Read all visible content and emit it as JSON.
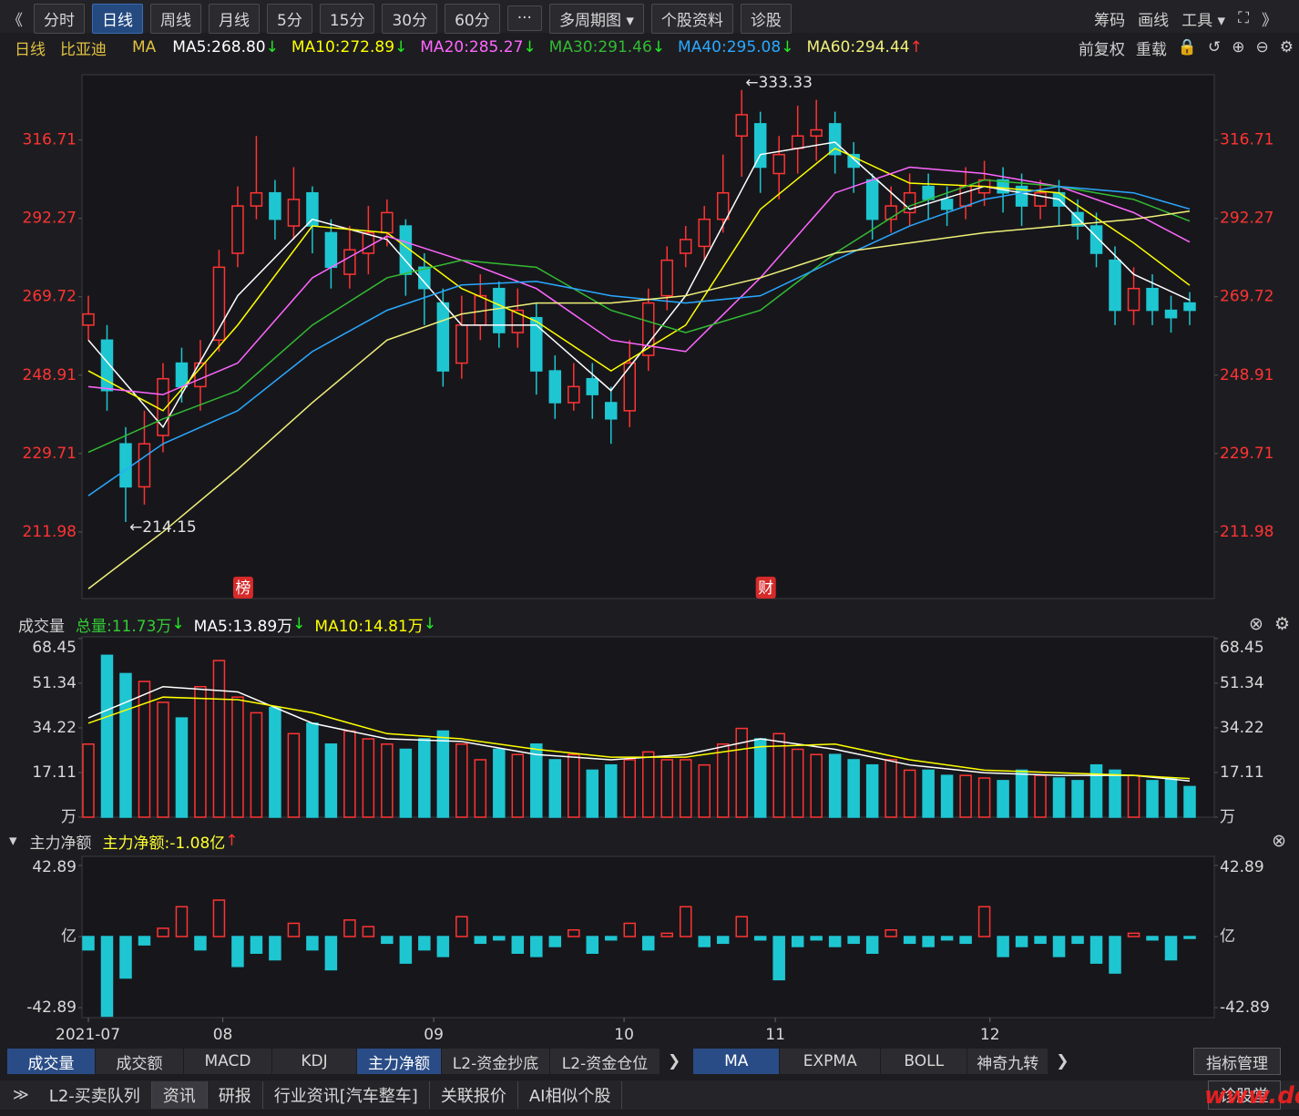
{
  "toolbar": {
    "left": [
      "《",
      "分时",
      "日线",
      "周线",
      "月线",
      "5分",
      "15分",
      "30分",
      "60分",
      "···",
      "多周期图 ▾",
      "个股资料",
      "诊股"
    ],
    "active": 2,
    "right": [
      "筹码",
      "画线",
      "工具 ▾",
      "⛶",
      "》"
    ]
  },
  "info_bar": {
    "period": "日线",
    "name": "比亚迪",
    "indicator": "MA",
    "right": [
      "前复权",
      "重载",
      "🔒",
      "↺",
      "⊕",
      "⊖",
      "⚙"
    ]
  },
  "chart_data": [
    {
      "type": "candlestick",
      "log": true,
      "ylim": [
        198,
        338.6
      ],
      "yticks": [
        211.98,
        229.71,
        248.91,
        269.72,
        292.27,
        316.71
      ],
      "up_color": "#ff3333",
      "down_color": "#1ec6d2",
      "candles": [
        [
          262,
          265,
          270,
          258
        ],
        [
          258,
          245,
          262,
          240
        ],
        [
          232,
          222,
          236,
          214.15
        ],
        [
          222,
          232,
          240,
          218
        ],
        [
          234,
          248,
          252,
          230
        ],
        [
          252,
          246,
          256,
          242
        ],
        [
          246,
          252,
          258,
          240
        ],
        [
          258,
          278,
          283,
          255
        ],
        [
          282,
          296,
          302,
          278
        ],
        [
          296,
          300,
          318,
          292
        ],
        [
          300,
          292,
          304,
          286
        ],
        [
          290,
          298,
          308,
          286
        ],
        [
          300,
          290,
          302,
          282
        ],
        [
          288,
          278,
          292,
          272
        ],
        [
          276,
          283,
          290,
          272
        ],
        [
          282,
          288,
          296,
          276
        ],
        [
          288,
          294,
          298,
          284
        ],
        [
          290,
          276,
          292,
          270
        ],
        [
          278,
          272,
          282,
          262
        ],
        [
          268,
          250,
          272,
          246
        ],
        [
          252,
          262,
          270,
          248
        ],
        [
          262,
          270,
          276,
          258
        ],
        [
          272,
          260,
          274,
          256
        ],
        [
          260,
          266,
          272,
          256
        ],
        [
          264,
          250,
          268,
          244
        ],
        [
          250,
          242,
          254,
          238
        ],
        [
          242,
          246,
          252,
          240
        ],
        [
          248,
          244,
          252,
          238
        ],
        [
          242,
          238,
          246,
          232
        ],
        [
          240,
          252,
          258,
          236
        ],
        [
          254,
          268,
          272,
          250
        ],
        [
          270,
          280,
          284,
          266
        ],
        [
          282,
          286,
          290,
          278
        ],
        [
          284,
          292,
          296,
          280
        ],
        [
          292,
          300,
          312,
          288
        ],
        [
          318,
          325,
          333.33,
          305
        ],
        [
          322,
          308,
          326,
          300
        ],
        [
          306,
          312,
          318,
          298
        ],
        [
          314,
          318,
          328,
          306
        ],
        [
          318,
          320,
          330,
          310
        ],
        [
          322,
          312,
          326,
          306
        ],
        [
          312,
          308,
          316,
          300
        ],
        [
          304,
          292,
          306,
          286
        ],
        [
          292,
          296,
          302,
          288
        ],
        [
          294,
          300,
          306,
          290
        ],
        [
          302,
          298,
          306,
          292
        ],
        [
          298,
          295,
          302,
          290
        ],
        [
          296,
          302,
          308,
          292
        ],
        [
          300,
          304,
          310,
          296
        ],
        [
          304,
          300,
          308,
          294
        ],
        [
          302,
          296,
          306,
          290
        ],
        [
          296,
          300,
          304,
          292
        ],
        [
          300,
          296,
          304,
          290
        ],
        [
          294,
          290,
          298,
          286
        ],
        [
          290,
          282,
          294,
          278
        ],
        [
          280,
          266,
          284,
          262
        ],
        [
          266,
          272,
          278,
          262
        ],
        [
          272,
          266,
          276,
          262
        ],
        [
          266,
          264,
          270,
          260
        ],
        [
          268,
          266,
          271,
          262
        ]
      ],
      "line_x": [
        0,
        4,
        8,
        12,
        16,
        20,
        24,
        28,
        32,
        36,
        40,
        44,
        48,
        52,
        56,
        59
      ],
      "ma": [
        {
          "name": "MA5",
          "legend": "MA5:268.80",
          "trend": "↓",
          "color": "#ffffff",
          "values": [
            258,
            236,
            270,
            292,
            286,
            262,
            262,
            245,
            270,
            312,
            316,
            295,
            302,
            298,
            276,
            268.8
          ]
        },
        {
          "name": "MA10",
          "legend": "MA10:272.89",
          "trend": "↓",
          "color": "#ffff00",
          "values": [
            250,
            240,
            262,
            290,
            288,
            272,
            263,
            250,
            262,
            295,
            314,
            303,
            302,
            300,
            285,
            272.89
          ]
        },
        {
          "name": "MA20",
          "legend": "MA20:285.27",
          "trend": "↓",
          "color": "#ff66ff",
          "values": [
            246,
            244,
            252,
            275,
            287,
            280,
            272,
            258,
            255,
            275,
            300,
            308,
            306,
            302,
            294,
            285.27
          ]
        },
        {
          "name": "MA30",
          "legend": "MA30:291.46",
          "trend": "↓",
          "color": "#33bb33",
          "values": [
            230,
            238,
            245,
            262,
            275,
            280,
            278,
            266,
            260,
            266,
            282,
            296,
            304,
            302,
            298,
            291.46
          ]
        },
        {
          "name": "MA40",
          "legend": "MA40:295.08",
          "trend": "↓",
          "color": "#2aa8ff",
          "values": [
            220,
            232,
            240,
            255,
            266,
            273,
            274,
            270,
            268,
            270,
            280,
            290,
            298,
            302,
            300,
            295.08
          ]
        },
        {
          "name": "MA60",
          "legend": "MA60:294.44",
          "trend": "↑",
          "color": "#f0f07a",
          "values": [
            200,
            212,
            226,
            242,
            258,
            265,
            268,
            268,
            270,
            275,
            282,
            285,
            288,
            290,
            292,
            294.44
          ]
        }
      ],
      "annotations": [
        {
          "x": 35,
          "value": 333.33,
          "label": "←333.33"
        },
        {
          "x": 2,
          "value": 214.15,
          "label": "←214.15"
        }
      ],
      "markers": [
        {
          "x": 8,
          "label": "榜"
        },
        {
          "x": 36,
          "label": "财"
        }
      ]
    },
    {
      "type": "bar",
      "title": "成交量",
      "icons": [
        "⊗",
        "⚙"
      ],
      "ylim": [
        0,
        69.1
      ],
      "yticks": [
        {
          "value": 0,
          "label": "万"
        },
        17.11,
        34.22,
        51.34,
        68.45
      ],
      "values": [
        28,
        62,
        55,
        52,
        44,
        38,
        50,
        60,
        46,
        40,
        42,
        32,
        36,
        28,
        33,
        30,
        28,
        26,
        30,
        33,
        28,
        22,
        26,
        24,
        28,
        22,
        24,
        18,
        20,
        22,
        25,
        22,
        22,
        20,
        28,
        34,
        30,
        32,
        26,
        24,
        24,
        22,
        20,
        22,
        18,
        18,
        16,
        16,
        15,
        14,
        18,
        16,
        15,
        14,
        20,
        18,
        16,
        14,
        15,
        11.73
      ],
      "summary": [
        {
          "text": "总量:11.73万",
          "trend": "↓",
          "color": "#33cc33"
        },
        {
          "text": "MA5:13.89万",
          "trend": "↓",
          "color": "#ffffff"
        },
        {
          "text": "MA10:14.81万",
          "trend": "↓",
          "color": "#ffff00"
        }
      ],
      "line_x": [
        0,
        4,
        8,
        12,
        16,
        20,
        24,
        28,
        32,
        36,
        40,
        44,
        48,
        52,
        56,
        59
      ],
      "lines": [
        {
          "name": "MA5",
          "color": "#ffffff",
          "values": [
            38,
            50,
            48,
            36,
            30,
            29,
            24,
            22,
            24,
            30,
            26,
            20,
            17,
            16,
            16,
            13.89
          ]
        },
        {
          "name": "MA10",
          "color": "#ffff00",
          "values": [
            36,
            46,
            45,
            40,
            32,
            30,
            26,
            23,
            23,
            27,
            28,
            22,
            18,
            17,
            16,
            14.81
          ]
        }
      ]
    },
    {
      "type": "bar",
      "title": "主力净额",
      "icons": [
        "▾",
        "⊗"
      ],
      "ylim": [
        -48.9,
        48.4
      ],
      "yticks": [
        -42.89,
        {
          "value": 0,
          "label": "亿"
        },
        42.89
      ],
      "values": [
        -8,
        -48,
        -25,
        -5,
        5,
        18,
        -8,
        22,
        -18,
        -10,
        -14,
        8,
        -8,
        -20,
        10,
        6,
        -4,
        -16,
        -8,
        -12,
        12,
        -4,
        -2,
        -10,
        -12,
        -6,
        4,
        -10,
        -2,
        8,
        -8,
        2,
        18,
        -6,
        -4,
        12,
        -2,
        -26,
        -6,
        -2,
        -6,
        -4,
        -10,
        4,
        -4,
        -6,
        -2,
        -4,
        18,
        -12,
        -6,
        -4,
        -12,
        -4,
        -16,
        -22,
        2,
        -2,
        -14,
        -1.08
      ],
      "summary": [
        {
          "text": "主力净额:-1.08亿",
          "trend": "↑",
          "color": "#ffff33"
        }
      ],
      "xticks": [
        {
          "value": 0,
          "label": "2021-07"
        },
        {
          "value": 7.2,
          "label": "08"
        },
        {
          "value": 18.5,
          "label": "09"
        },
        {
          "value": 28.7,
          "label": "10"
        },
        {
          "value": 36.8,
          "label": "11"
        },
        {
          "value": 48.3,
          "label": "12"
        }
      ]
    }
  ],
  "indicator_tabs": {
    "group1": [
      "成交量",
      "成交额",
      "MACD",
      "KDJ",
      "主力净额",
      "L2-资金抄底",
      "L2-资金仓位"
    ],
    "active1": [
      0,
      4
    ],
    "more": "❯",
    "group2": [
      "MA",
      "EXPMA",
      "BOLL",
      "神奇九转"
    ],
    "active2": [
      0
    ],
    "manage": "指标管理"
  },
  "bottom_bar": {
    "toggle": "≫",
    "tabs": [
      "L2-买卖队列",
      "资讯",
      "研报",
      "行业资讯[汽车整车]",
      "关联报价",
      "AI相似个股"
    ],
    "active": 1,
    "right": "诊股堂",
    "watermark": "www.ddgpw.net"
  }
}
